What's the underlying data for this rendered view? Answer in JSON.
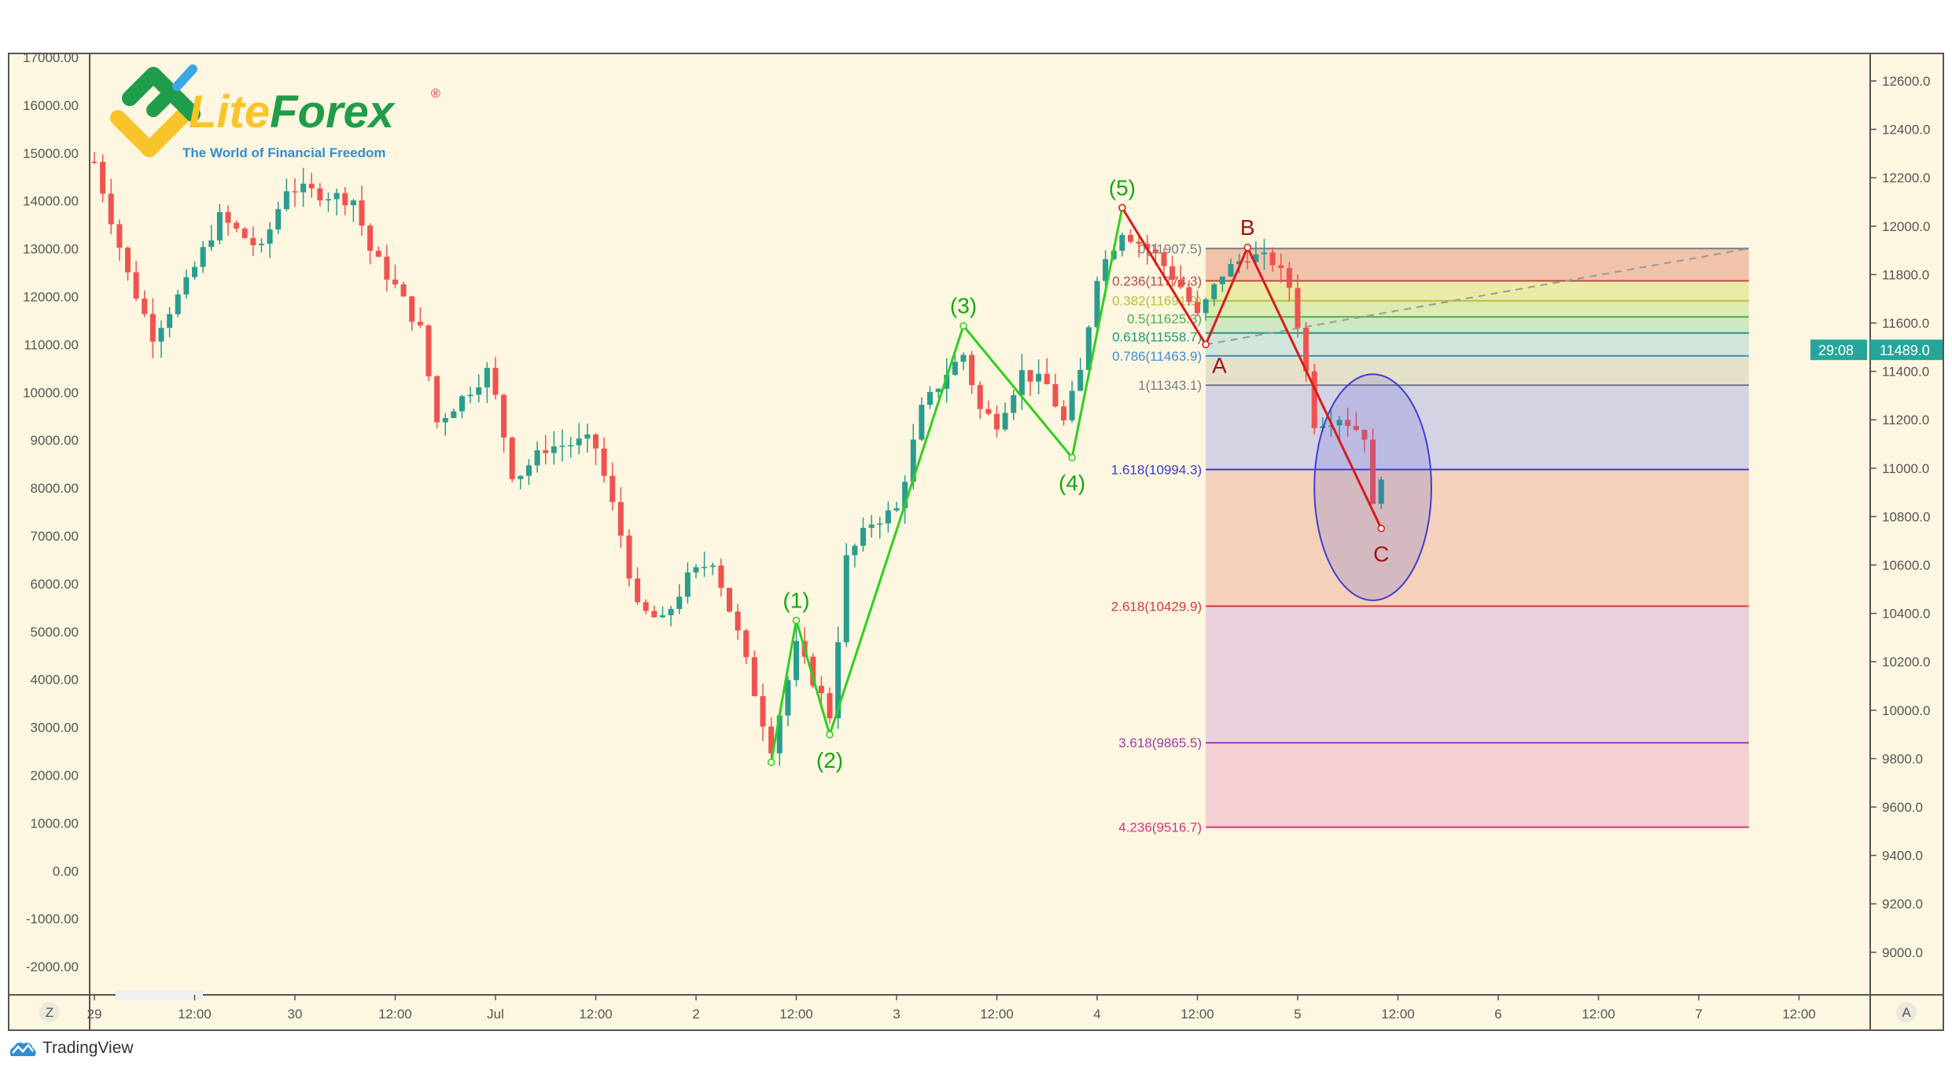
{
  "logo": {
    "brand_part1": "Lite",
    "brand_part2": "Forex",
    "registered": "®",
    "tagline": "The World of Financial Freedom"
  },
  "footer": {
    "tradingview_label": "TradingView"
  },
  "buttons": {
    "left_corner": "Z",
    "right_corner": "A"
  },
  "colors": {
    "background": "#fdf6e0",
    "up": "#2a9d8f",
    "down": "#ef5350",
    "wave_impulse": "#33dd22",
    "wave_corrective": "#dd1c1c",
    "ellipse": "#3f3fd0",
    "price_tag": "#26a69a"
  },
  "chart_data": {
    "type": "candlestick",
    "timeframe_hours": 1,
    "price_axis_right": {
      "min": 9000,
      "max": 12600,
      "step": 200,
      "decimals": 1
    },
    "price_axis_left": {
      "min": -2000,
      "max": 17000,
      "step": 1000,
      "decimals": 2
    },
    "time_ticks": [
      {
        "h": 0,
        "label": "29"
      },
      {
        "h": 12,
        "label": "12:00"
      },
      {
        "h": 24,
        "label": "30"
      },
      {
        "h": 36,
        "label": "12:00"
      },
      {
        "h": 48,
        "label": "Jul"
      },
      {
        "h": 60,
        "label": "12:00"
      },
      {
        "h": 72,
        "label": "2"
      },
      {
        "h": 84,
        "label": "12:00"
      },
      {
        "h": 96,
        "label": "3"
      },
      {
        "h": 108,
        "label": "12:00"
      },
      {
        "h": 120,
        "label": "4"
      },
      {
        "h": 132,
        "label": "12:00"
      },
      {
        "h": 144,
        "label": "5"
      },
      {
        "h": 156,
        "label": "12:00"
      },
      {
        "h": 168,
        "label": "6"
      },
      {
        "h": 180,
        "label": "12:00"
      },
      {
        "h": 192,
        "label": "7"
      },
      {
        "h": 204,
        "label": "12:00"
      }
    ],
    "price_path": [
      [
        0,
        12266
      ],
      [
        4,
        11800
      ],
      [
        7,
        11550
      ],
      [
        11,
        11760
      ],
      [
        15,
        12035
      ],
      [
        20,
        11900
      ],
      [
        23,
        12160
      ],
      [
        27,
        12135
      ],
      [
        31,
        12110
      ],
      [
        33,
        11900
      ],
      [
        36,
        11750
      ],
      [
        39,
        11570
      ],
      [
        41,
        11190
      ],
      [
        44,
        11290
      ],
      [
        47,
        11400
      ],
      [
        48,
        11290
      ],
      [
        50,
        10980
      ],
      [
        51,
        10980
      ],
      [
        54,
        11085
      ],
      [
        59,
        11110
      ],
      [
        60,
        11085
      ],
      [
        63,
        10725
      ],
      [
        65,
        10417
      ],
      [
        68,
        10365
      ],
      [
        71,
        10545
      ],
      [
        74,
        10623
      ],
      [
        77,
        10315
      ],
      [
        80,
        9955
      ],
      [
        81,
        9850
      ],
      [
        84,
        10263
      ],
      [
        87,
        10057
      ],
      [
        88,
        9980
      ],
      [
        90,
        10623
      ],
      [
        93,
        10777
      ],
      [
        96,
        10828
      ],
      [
        99,
        11240
      ],
      [
        102,
        11395
      ],
      [
        104,
        11470
      ],
      [
        106,
        11240
      ],
      [
        108,
        11190
      ],
      [
        111,
        11395
      ],
      [
        114,
        11343
      ],
      [
        116,
        11190
      ],
      [
        118,
        11395
      ],
      [
        120,
        11800
      ],
      [
        123,
        11985
      ],
      [
        127,
        11880
      ],
      [
        130,
        11750
      ],
      [
        132,
        11624
      ],
      [
        135,
        11805
      ],
      [
        138,
        11880
      ],
      [
        141,
        11855
      ],
      [
        143,
        11750
      ],
      [
        144,
        11600
      ],
      [
        146,
        11190
      ],
      [
        149,
        11215
      ],
      [
        151,
        11165
      ],
      [
        152,
        11140
      ],
      [
        153,
        10830
      ],
      [
        154,
        10982
      ]
    ],
    "last_price": {
      "value": "11489.0",
      "countdown": "29:08",
      "price": 11489.0
    },
    "fibonacci": {
      "start_h": 133,
      "end_h": 198,
      "levels": [
        {
          "ratio": 0,
          "price": 11907.5,
          "label": "0(11907.5)",
          "color": "#787b86",
          "fill": "#f1c3aa"
        },
        {
          "ratio": 0.236,
          "price": 11774.3,
          "label": "0.236(11774.3)",
          "color": "#b94a48",
          "fill": "#ebeba6"
        },
        {
          "ratio": 0.382,
          "price": 11691.9,
          "label": "0.382(11691.9)",
          "color": "#b5c23a",
          "fill": "#dcebb0"
        },
        {
          "ratio": 0.5,
          "price": 11625.3,
          "label": "0.5(11625.3)",
          "color": "#4caf50",
          "fill": "#cfe7c2"
        },
        {
          "ratio": 0.618,
          "price": 11558.7,
          "label": "0.618(11558.7)",
          "color": "#1a9a7f",
          "fill": "#d0e6da"
        },
        {
          "ratio": 0.786,
          "price": 11463.9,
          "label": "0.786(11463.9)",
          "color": "#3d8fd0",
          "fill": "#e5e0c9"
        },
        {
          "ratio": 1,
          "price": 11343.1,
          "label": "1(11343.1)",
          "color": "#787b86",
          "fill": "#d3d3e3"
        },
        {
          "ratio": 1.618,
          "price": 10994.3,
          "label": "1.618(10994.3)",
          "color": "#3a3ad0",
          "fill": "#f3d1ba"
        },
        {
          "ratio": 2.618,
          "price": 10429.9,
          "label": "2.618(10429.9)",
          "color": "#d23c3c",
          "fill": "#e8d0dc"
        },
        {
          "ratio": 3.618,
          "price": 9865.5,
          "label": "3.618(9865.5)",
          "color": "#9c3bb0",
          "fill": "#f2d0d3"
        },
        {
          "ratio": 4.236,
          "price": 9516.7,
          "label": "4.236(9516.7)",
          "color": "#d63384",
          "fill": null
        }
      ]
    },
    "impulse_wave": [
      {
        "h": 81,
        "p": 9785,
        "label": ""
      },
      {
        "h": 84,
        "p": 10371,
        "label": "(1)"
      },
      {
        "h": 88,
        "p": 9899,
        "label": "(2)"
      },
      {
        "h": 104,
        "p": 11588,
        "label": "(3)"
      },
      {
        "h": 117,
        "p": 11044,
        "label": "(4)"
      },
      {
        "h": 123,
        "p": 12076,
        "label": "(5)"
      }
    ],
    "corrective_wave": [
      {
        "h": 123,
        "p": 12076,
        "label": ""
      },
      {
        "h": 133,
        "p": 11511,
        "label": "A"
      },
      {
        "h": 138,
        "p": 11912,
        "label": "B"
      },
      {
        "h": 154,
        "p": 10751,
        "label": "C"
      }
    ],
    "trend_line": {
      "from": {
        "h": 133,
        "p": 11511
      },
      "to": {
        "h": 198,
        "p": 11907.5
      }
    },
    "ellipse": {
      "h": 153,
      "p": 10921,
      "half_width_h": 7,
      "half_height_p": 467
    }
  }
}
